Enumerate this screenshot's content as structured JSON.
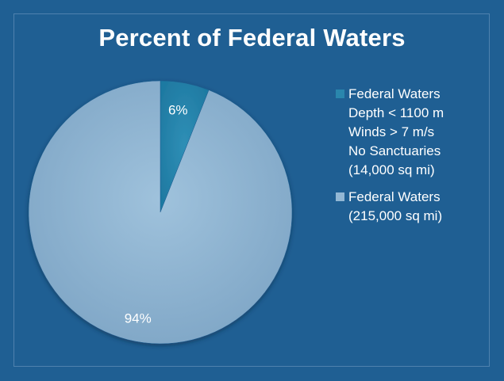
{
  "colors": {
    "background": "#1f5f93",
    "slice_small": "#2a86ad",
    "slice_large": "#92b7d4"
  },
  "chart_data": {
    "type": "pie",
    "title": "Percent of Federal Waters",
    "slices": [
      {
        "label_lines": [
          "Federal Waters",
          "Depth < 1100 m",
          "Winds > 7 m/s",
          "No Sanctuaries",
          "(14,000 sq mi)"
        ],
        "value": 6,
        "data_label": "6%",
        "color": "#2a86ad"
      },
      {
        "label_lines": [
          "Federal Waters",
          "(215,000 sq mi)"
        ],
        "value": 94,
        "data_label": "94%",
        "color": "#92b7d4"
      }
    ],
    "legend_position": "right"
  }
}
